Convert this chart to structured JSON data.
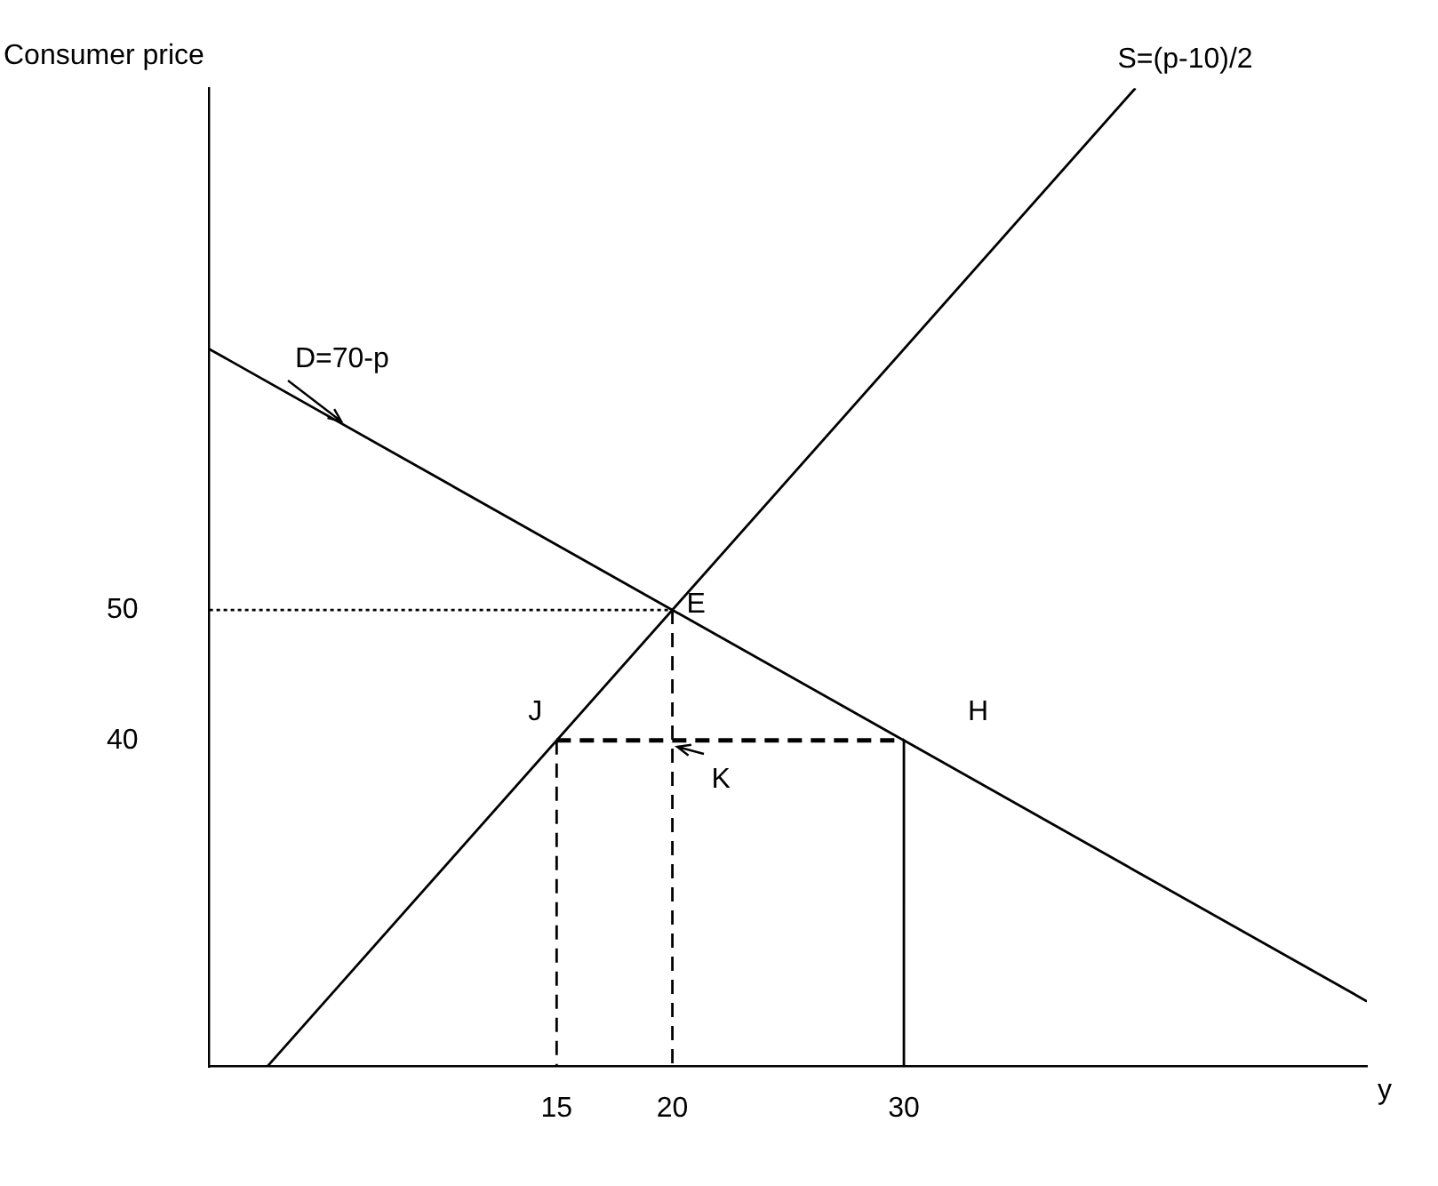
{
  "chart_data": {
    "type": "line",
    "xlabel": "y",
    "ylabel": "Consumer price",
    "xlim": [
      0,
      50
    ],
    "ylim": [
      15,
      90
    ],
    "xticks": [
      15,
      20,
      30
    ],
    "yticks": [
      40,
      50
    ],
    "grid": false,
    "legend": false,
    "marker": "none",
    "series": [
      {
        "color": "#000000",
        "x": [
          2.5,
          40
        ],
        "values": [
          15,
          90
        ],
        "line_style": "solid"
      },
      {
        "color": "#000000",
        "x": [
          0,
          50
        ],
        "values": [
          70,
          20
        ],
        "line_style": "solid"
      },
      {
        "color": "#000000",
        "x": [
          0,
          20
        ],
        "values": [
          50,
          50
        ],
        "line_style": "dotted"
      },
      {
        "color": "#000000",
        "x": [
          20,
          20
        ],
        "values": [
          50,
          15
        ],
        "line_style": "dashed"
      },
      {
        "color": "#000000",
        "x": [
          15,
          30
        ],
        "values": [
          40,
          40
        ],
        "line_style": "dashed"
      },
      {
        "color": "#000000",
        "x": [
          30,
          30
        ],
        "values": [
          40,
          15
        ],
        "line_style": "solid"
      },
      {
        "color": "#000000",
        "x": [
          15,
          15
        ],
        "values": [
          40,
          15
        ],
        "line_style": "dashed"
      }
    ],
    "annotations": [
      {
        "text": "S=(p-10)/2",
        "x": 40,
        "y": 90
      },
      {
        "text": "D=70-p",
        "x": 6,
        "y": 64
      },
      {
        "text": "E",
        "x": 20,
        "y": 50
      },
      {
        "text": "J",
        "x": 15,
        "y": 40
      },
      {
        "text": "H",
        "x": 30,
        "y": 40
      },
      {
        "text": "K",
        "x": 20,
        "y": 40
      }
    ]
  }
}
